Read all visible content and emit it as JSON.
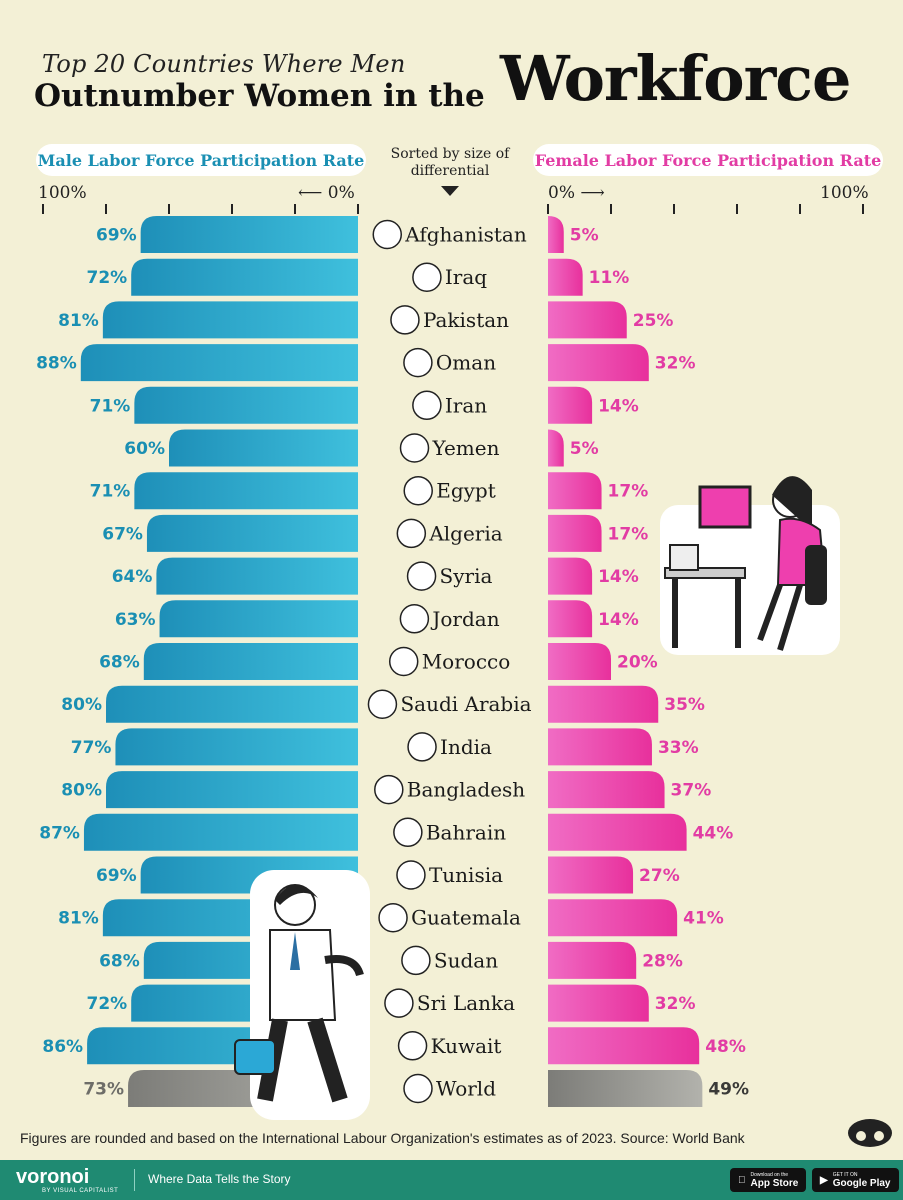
{
  "title": {
    "line1": "Top 20 Countries Where Men",
    "line2": "Outnumber Women in the",
    "line3": "Workforce"
  },
  "legend": {
    "male": "Male Labor Force Participation Rate",
    "female": "Female Labor Force Participation Rate",
    "sorted": "Sorted by size of differential"
  },
  "axis": {
    "male_max": "100%",
    "male_zero": "⟵ 0%",
    "female_zero": "0% ⟶",
    "female_max": "100%"
  },
  "colors": {
    "male": "#27a5c9",
    "female": "#ee3fae",
    "world": "#9a9a94",
    "male_text": "#1a8fb3",
    "female_text": "#e23ca4",
    "world_text": "#6d6d68"
  },
  "chart_data": {
    "type": "bar",
    "categories": [
      "Afghanistan",
      "Iraq",
      "Pakistan",
      "Oman",
      "Iran",
      "Yemen",
      "Egypt",
      "Algeria",
      "Syria",
      "Jordan",
      "Morocco",
      "Saudi Arabia",
      "India",
      "Bangladesh",
      "Bahrain",
      "Tunisia",
      "Guatemala",
      "Sudan",
      "Sri Lanka",
      "Kuwait",
      "World"
    ],
    "series": [
      {
        "name": "Male Labor Force Participation Rate",
        "values": [
          69,
          72,
          81,
          88,
          71,
          60,
          71,
          67,
          64,
          63,
          68,
          80,
          77,
          80,
          87,
          69,
          81,
          68,
          72,
          86,
          73
        ]
      },
      {
        "name": "Female Labor Force Participation Rate",
        "values": [
          5,
          11,
          25,
          32,
          14,
          5,
          17,
          17,
          14,
          14,
          20,
          35,
          33,
          37,
          44,
          27,
          41,
          28,
          32,
          48,
          49
        ]
      }
    ],
    "ylim": [
      0,
      100
    ]
  },
  "footnote": "Figures are rounded and based on the International Labour Organization's estimates as of 2023. Source: World Bank",
  "footer": {
    "brand": "voronoi",
    "brand_sub": "BY VISUAL CAPITALIST",
    "tagline": "Where Data Tells the Story",
    "app_store_small": "Download on the",
    "app_store": "App Store",
    "google_small": "GET IT ON",
    "google_play": "Google Play"
  }
}
